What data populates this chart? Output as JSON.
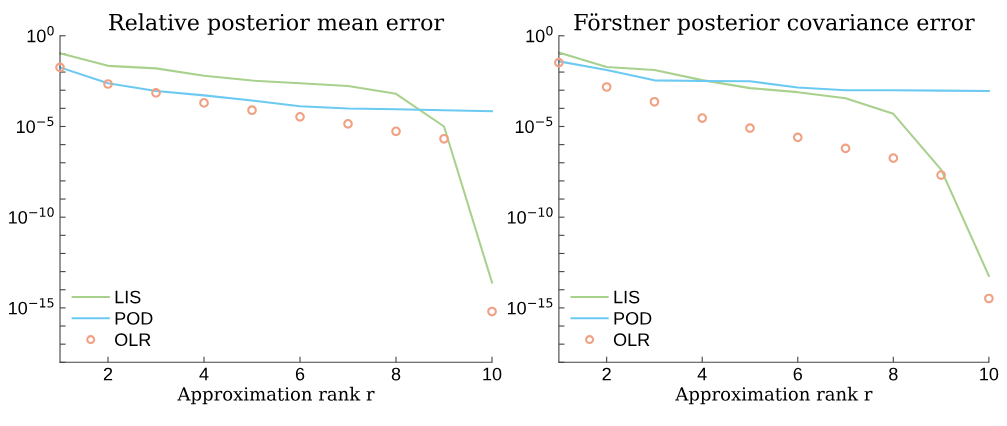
{
  "chart_data": [
    {
      "type": "line",
      "title": "Relative posterior mean error",
      "xlabel": "Approximation rank r",
      "x": [
        1,
        2,
        3,
        4,
        5,
        6,
        7,
        8,
        9,
        10
      ],
      "log": "y",
      "grid": false,
      "legend": "bottom left",
      "xlim": [
        1,
        10
      ],
      "xticks": [
        2,
        4,
        6,
        8,
        10
      ],
      "ylim": [
        1e-18,
        1
      ],
      "yticks": [
        {
          "value": 1e-18,
          "label": null
        },
        {
          "value": 1e-17,
          "label": null
        },
        {
          "value": 1e-16,
          "label": null
        },
        {
          "value": 1e-15,
          "label": "10$^{−15}$"
        },
        {
          "value": 1e-14,
          "label": null
        },
        {
          "value": 1e-13,
          "label": null
        },
        {
          "value": 1e-12,
          "label": null
        },
        {
          "value": 1e-11,
          "label": null
        },
        {
          "value": 1e-10,
          "label": "10$^{−10}$"
        },
        {
          "value": 1e-09,
          "label": null
        },
        {
          "value": 1e-08,
          "label": null
        },
        {
          "value": 1e-07,
          "label": null
        },
        {
          "value": 1e-06,
          "label": null
        },
        {
          "value": 1e-05,
          "label": "10$^{−5}$"
        },
        {
          "value": 0.0001,
          "label": null
        },
        {
          "value": 0.001,
          "label": null
        },
        {
          "value": 0.01,
          "label": null
        },
        {
          "value": 0.1,
          "label": null
        },
        {
          "value": 1,
          "label": "10$^{0}$"
        }
      ],
      "series": [
        {
          "name": "LIS",
          "color": "#a9d18e",
          "marker": "none",
          "line_style": "solid",
          "values": [
            0.11,
            0.022,
            0.016,
            0.0063,
            0.0034,
            0.0024,
            0.0017,
            0.00063,
            1e-05,
            2.5e-14
          ]
        },
        {
          "name": "POD",
          "color": "#6ccaf2",
          "marker": "none",
          "line_style": "solid",
          "values": [
            0.018,
            0.0024,
            0.00091,
            0.00052,
            0.00027,
            0.00013,
            9.8e-05,
            8.9e-05,
            7.9e-05,
            6.9e-05
          ]
        },
        {
          "name": "OLR",
          "type": "scatter",
          "color": "#f0a183",
          "marker": "circle",
          "values": [
            0.018,
            0.0022,
            0.00071,
            0.0002,
            7.9e-05,
            3.4e-05,
            1.4e-05,
            5.4e-06,
            2.1e-06,
            6.3e-16
          ]
        }
      ]
    },
    {
      "type": "line",
      "title": "Förstner posterior covariance error",
      "xlabel": "Approximation rank r",
      "x": [
        1,
        2,
        3,
        4,
        5,
        6,
        7,
        8,
        9,
        10
      ],
      "log": "y",
      "grid": false,
      "legend": "bottom left",
      "xlim": [
        1,
        10
      ],
      "xticks": [
        2,
        4,
        6,
        8,
        10
      ],
      "ylim": [
        1e-18,
        1
      ],
      "yticks": [
        {
          "value": 1e-18,
          "label": null
        },
        {
          "value": 1e-17,
          "label": null
        },
        {
          "value": 1e-16,
          "label": null
        },
        {
          "value": 1e-15,
          "label": "10$^{−15}$"
        },
        {
          "value": 1e-14,
          "label": null
        },
        {
          "value": 1e-13,
          "label": null
        },
        {
          "value": 1e-12,
          "label": null
        },
        {
          "value": 1e-11,
          "label": null
        },
        {
          "value": 1e-10,
          "label": "10$^{−10}$"
        },
        {
          "value": 1e-09,
          "label": null
        },
        {
          "value": 1e-08,
          "label": null
        },
        {
          "value": 1e-07,
          "label": null
        },
        {
          "value": 1e-06,
          "label": null
        },
        {
          "value": 1e-05,
          "label": "10$^{−5}$"
        },
        {
          "value": 0.0001,
          "label": null
        },
        {
          "value": 0.001,
          "label": null
        },
        {
          "value": 0.01,
          "label": null
        },
        {
          "value": 0.1,
          "label": null
        },
        {
          "value": 1,
          "label": "10$^{0}$"
        }
      ],
      "series": [
        {
          "name": "LIS",
          "color": "#a9d18e",
          "marker": "none",
          "line_style": "solid",
          "values": [
            0.12,
            0.019,
            0.013,
            0.0036,
            0.0013,
            0.00078,
            0.00036,
            5e-05,
            4.2e-08,
            5.8e-14
          ]
        },
        {
          "name": "POD",
          "color": "#6ccaf2",
          "marker": "none",
          "line_style": "solid",
          "values": [
            0.039,
            0.013,
            0.0035,
            0.0032,
            0.0031,
            0.0014,
            0.001,
            0.001,
            0.00095,
            0.00091
          ]
        },
        {
          "name": "OLR",
          "type": "scatter",
          "color": "#f0a183",
          "marker": "circle",
          "values": [
            0.033,
            0.0015,
            0.00023,
            2.9e-05,
            8.1e-06,
            2.5e-06,
            6.2e-07,
            1.8e-07,
            2.1e-08,
            3.3e-15
          ]
        }
      ]
    }
  ]
}
